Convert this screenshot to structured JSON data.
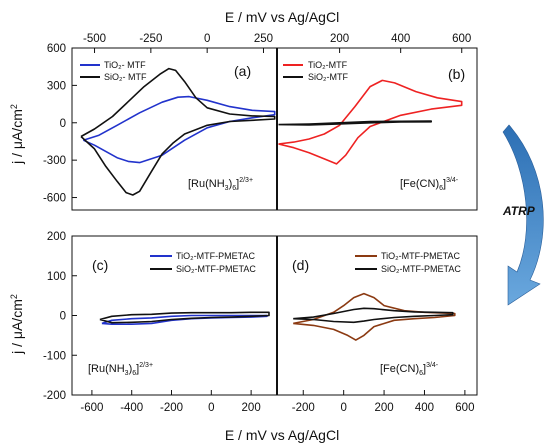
{
  "axes_titles": {
    "top_x": "E / mV  vs Ag/AgCl",
    "bottom_x": "E / mV  vs Ag/AgCl",
    "y_top": "j / μA/cm",
    "y_top_exp": "2",
    "y_bottom": "j / μA/cm",
    "y_bottom_exp": "2"
  },
  "arrow_label": "ATRP",
  "colors": {
    "blue": "#2233cc",
    "black": "#111111",
    "red": "#ee2222",
    "brown": "#8b3a12",
    "arrow_top": "#2c6fb4",
    "arrow_bottom": "#6aa8de"
  },
  "panels": [
    {
      "id": "a",
      "letter": "(a)",
      "redox": {
        "prefix": "[Ru(NH",
        "sub1": "3",
        "mid": ")",
        "sub2": "6",
        "close": "]",
        "sup": "2/3+"
      },
      "legend": [
        "TiO₂- MTF",
        "SiO₂- MTF"
      ],
      "xaxis_ticks": [
        "-500",
        "-250",
        "0",
        "250"
      ],
      "yaxis_ticks": [
        "600",
        "300",
        "0",
        "-300",
        "-600"
      ]
    },
    {
      "id": "b",
      "letter": "(b)",
      "redox": {
        "prefix": "[Fe(CN)",
        "sub1": "6",
        "mid": "",
        "sub2": "",
        "close": "]",
        "sup": "3/4-"
      },
      "legend": [
        "TiO₂-MTF",
        "SiO₂-MTF"
      ],
      "xaxis_ticks": [
        "200",
        "400",
        "600"
      ]
    },
    {
      "id": "c",
      "letter": "(c)",
      "redox": {
        "prefix": "[Ru(NH",
        "sub1": "3",
        "mid": ")",
        "sub2": "6",
        "close": "]",
        "sup": "2/3+"
      },
      "legend": [
        "TiO₂-MTF-PMETAC",
        "SiO₂-MTF-PMETAC"
      ],
      "xaxis_ticks": [
        "-600",
        "-400",
        "-200",
        "0",
        "200"
      ],
      "yaxis_ticks": [
        "200",
        "100",
        "0",
        "-100",
        "-200"
      ]
    },
    {
      "id": "d",
      "letter": "(d)",
      "redox": {
        "prefix": "[Fe(CN)",
        "sub1": "6",
        "mid": "",
        "sub2": "",
        "close": "]",
        "sup": "3/4-"
      },
      "legend": [
        "TiO₂-MTF-PMETAC",
        "SiO₂-MTF-PMETAC"
      ],
      "xaxis_ticks": [
        "-200",
        "0",
        "200",
        "400",
        "600"
      ]
    }
  ],
  "chart_data": [
    {
      "panel": "a",
      "type": "line",
      "xlim": [
        -600,
        310
      ],
      "ylim": [
        -700,
        600
      ],
      "xlabel": "E / mV  vs Ag/AgCl",
      "ylabel": "j / μA/cm2",
      "series": [
        {
          "name": "TiO₂- MTF",
          "color": "blue",
          "x": [
            -550,
            -480,
            -400,
            -300,
            -200,
            -130,
            -80,
            0,
            100,
            200,
            300,
            300,
            200,
            100,
            0,
            -100,
            -200,
            -300,
            -350,
            -400,
            -450,
            -500,
            -550
          ],
          "y": [
            -140,
            -100,
            -20,
            80,
            165,
            205,
            210,
            180,
            130,
            100,
            90,
            65,
            40,
            10,
            -40,
            -140,
            -260,
            -320,
            -310,
            -280,
            -230,
            -180,
            -140
          ]
        },
        {
          "name": "SiO₂- MTF",
          "color": "black",
          "x": [
            -560,
            -500,
            -420,
            -350,
            -280,
            -210,
            -170,
            -140,
            -100,
            -50,
            0,
            100,
            200,
            300,
            300,
            200,
            100,
            0,
            -100,
            -150,
            -200,
            -250,
            -300,
            -330,
            -360,
            -400,
            -450,
            -500,
            -560
          ],
          "y": [
            -110,
            -50,
            50,
            170,
            290,
            390,
            435,
            420,
            330,
            200,
            120,
            70,
            55,
            50,
            30,
            20,
            10,
            -20,
            -90,
            -160,
            -250,
            -400,
            -550,
            -580,
            -560,
            -470,
            -350,
            -210,
            -110
          ]
        }
      ]
    },
    {
      "panel": "b",
      "type": "line",
      "xlim": [
        -5,
        650
      ],
      "ylim": [
        -700,
        600
      ],
      "series": [
        {
          "name": "TiO₂-MTF",
          "color": "red",
          "x": [
            0,
            50,
            100,
            150,
            200,
            250,
            300,
            340,
            380,
            450,
            520,
            600,
            600,
            500,
            400,
            300,
            260,
            220,
            190,
            150,
            100,
            50,
            0
          ],
          "y": [
            -170,
            -155,
            -130,
            -90,
            -20,
            130,
            290,
            340,
            320,
            250,
            200,
            170,
            140,
            110,
            60,
            -30,
            -120,
            -260,
            -330,
            -290,
            -240,
            -200,
            -170
          ]
        },
        {
          "name": "SiO₂-MTF",
          "color": "black",
          "x": [
            0,
            100,
            200,
            300,
            400,
            500,
            500,
            400,
            300,
            200,
            100,
            0
          ],
          "y": [
            -15,
            -10,
            0,
            10,
            12,
            14,
            8,
            6,
            0,
            -10,
            -18,
            -15
          ]
        }
      ]
    },
    {
      "panel": "c",
      "type": "line",
      "xlim": [
        -700,
        330
      ],
      "ylim": [
        -200,
        200
      ],
      "series": [
        {
          "name": "TiO₂-MTF-PMETAC",
          "color": "blue",
          "x": [
            -550,
            -500,
            -400,
            -300,
            -200,
            -100,
            0,
            100,
            200,
            280,
            280,
            200,
            100,
            0,
            -100,
            -200,
            -300,
            -400,
            -500,
            -550
          ],
          "y": [
            -20,
            -12,
            -8,
            -6,
            -2,
            0,
            0,
            0,
            0,
            0,
            -2,
            -4,
            -5,
            -6,
            -8,
            -12,
            -20,
            -22,
            -22,
            -20
          ]
        },
        {
          "name": "SiO₂-MTF-PMETAC",
          "color": "black",
          "x": [
            -560,
            -500,
            -400,
            -300,
            -200,
            -100,
            0,
            100,
            200,
            290,
            290,
            200,
            100,
            0,
            -100,
            -200,
            -300,
            -400,
            -500,
            -560
          ],
          "y": [
            -10,
            -2,
            2,
            3,
            6,
            7,
            7,
            7,
            8,
            8,
            0,
            -2,
            -4,
            -5,
            -7,
            -10,
            -15,
            -17,
            -18,
            -10
          ]
        }
      ]
    },
    {
      "panel": "d",
      "type": "line",
      "xlim": [
        -330,
        660
      ],
      "ylim": [
        -200,
        200
      ],
      "series": [
        {
          "name": "TiO₂-MTF-PMETAC",
          "color": "brown",
          "x": [
            -250,
            -150,
            -50,
            0,
            50,
            100,
            150,
            200,
            300,
            400,
            500,
            550,
            550,
            450,
            350,
            250,
            150,
            100,
            60,
            20,
            -50,
            -150,
            -250
          ],
          "y": [
            -20,
            -10,
            8,
            25,
            45,
            55,
            45,
            25,
            12,
            8,
            6,
            5,
            0,
            -5,
            -8,
            -12,
            -28,
            -50,
            -62,
            -50,
            -35,
            -25,
            -20
          ]
        },
        {
          "name": "SiO₂-MTF-PMETAC",
          "color": "black",
          "x": [
            -250,
            -150,
            -50,
            50,
            100,
            150,
            250,
            350,
            450,
            540,
            540,
            450,
            350,
            250,
            150,
            100,
            50,
            -50,
            -150,
            -250
          ],
          "y": [
            -8,
            -4,
            5,
            15,
            18,
            17,
            12,
            9,
            8,
            7,
            2,
            0,
            -2,
            -5,
            -10,
            -14,
            -17,
            -15,
            -10,
            -8
          ]
        }
      ]
    }
  ]
}
